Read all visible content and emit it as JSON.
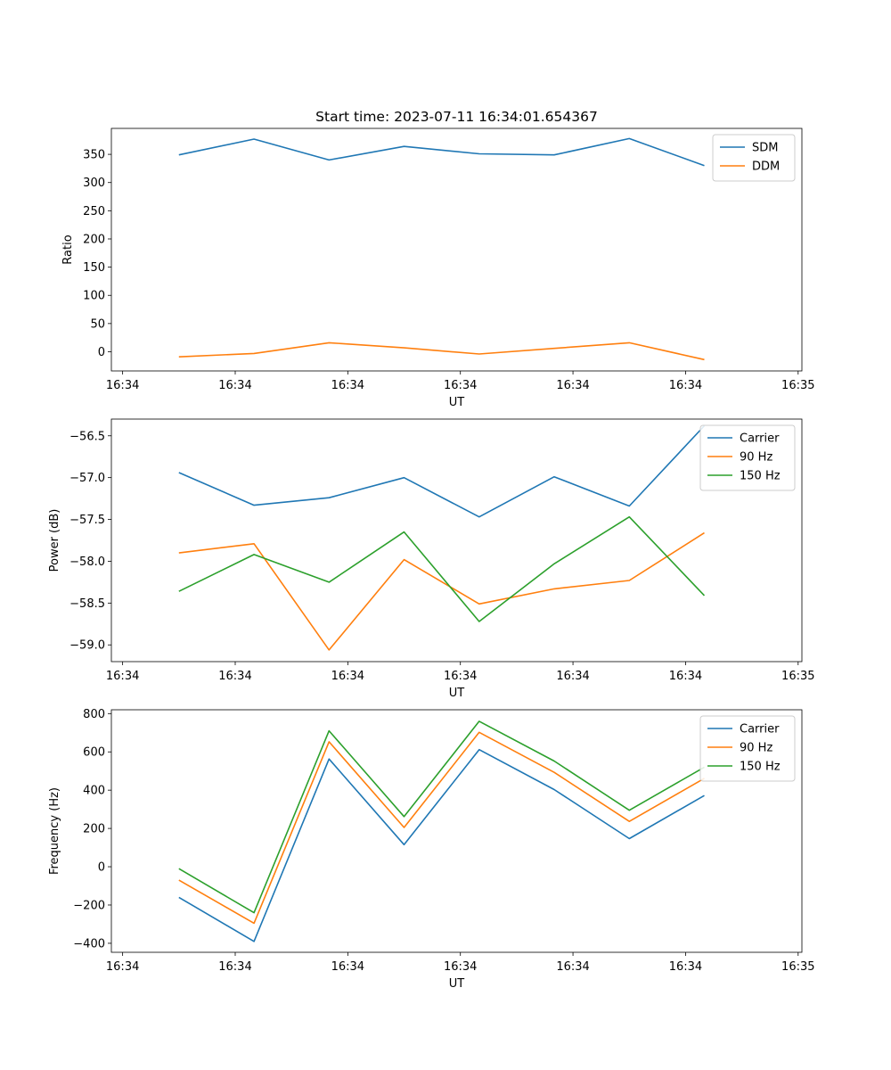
{
  "chart_data": [
    {
      "type": "line",
      "title": "Start time: 2023-07-11 16:34:01.654367",
      "xlabel": "UT",
      "ylabel": "Ratio",
      "x": [
        1,
        2,
        3,
        4,
        5,
        6,
        7,
        8
      ],
      "x_tick_values": [
        0.25,
        1.75,
        3.25,
        4.75,
        6.25,
        7.75,
        9.25
      ],
      "x_tick_labels": [
        "16:34",
        "16:34",
        "16:34",
        "16:34",
        "16:34",
        "16:34",
        "16:35"
      ],
      "xlim": [
        0.1,
        9.3
      ],
      "ylim": [
        -34,
        396
      ],
      "y_ticks": [
        0,
        50,
        100,
        150,
        200,
        250,
        300,
        350
      ],
      "legend_position": "top-right",
      "series": [
        {
          "name": "SDM",
          "color": "#1f77b4",
          "values": [
            349,
            377,
            340,
            364,
            351,
            349,
            378,
            330
          ]
        },
        {
          "name": "DDM",
          "color": "#ff7f0e",
          "values": [
            -9,
            -3,
            16,
            7,
            -4,
            6,
            16,
            -14
          ]
        }
      ]
    },
    {
      "type": "line",
      "title": "",
      "xlabel": "UT",
      "ylabel": "Power (dB)",
      "x": [
        1,
        2,
        3,
        4,
        5,
        6,
        7,
        8
      ],
      "x_tick_values": [
        0.25,
        1.75,
        3.25,
        4.75,
        6.25,
        7.75,
        9.25
      ],
      "x_tick_labels": [
        "16:34",
        "16:34",
        "16:34",
        "16:34",
        "16:34",
        "16:34",
        "16:35"
      ],
      "xlim": [
        0.1,
        9.3
      ],
      "ylim": [
        -59.2,
        -56.3
      ],
      "y_ticks": [
        -59.0,
        -58.5,
        -58.0,
        -57.5,
        -57.0,
        -56.5
      ],
      "y_tick_labels": [
        "−59.0",
        "−58.5",
        "−58.0",
        "−57.5",
        "−57.0",
        "−56.5"
      ],
      "legend_position": "top-right",
      "series": [
        {
          "name": "Carrier",
          "color": "#1f77b4",
          "values": [
            -56.94,
            -57.33,
            -57.24,
            -57.0,
            -57.47,
            -56.99,
            -57.34,
            -56.38
          ]
        },
        {
          "name": "90 Hz",
          "color": "#ff7f0e",
          "values": [
            -57.9,
            -57.79,
            -59.06,
            -57.98,
            -58.51,
            -58.33,
            -58.23,
            -57.66
          ]
        },
        {
          "name": "150 Hz",
          "color": "#2ca02c",
          "values": [
            -58.36,
            -57.92,
            -58.25,
            -57.65,
            -58.72,
            -58.03,
            -57.47,
            -58.41
          ]
        }
      ]
    },
    {
      "type": "line",
      "title": "",
      "xlabel": "UT",
      "ylabel": "Frequency (Hz)",
      "x": [
        1,
        2,
        3,
        4,
        5,
        6,
        7,
        8
      ],
      "x_tick_values": [
        0.25,
        1.75,
        3.25,
        4.75,
        6.25,
        7.75,
        9.25
      ],
      "x_tick_labels": [
        "16:34",
        "16:34",
        "16:34",
        "16:34",
        "16:34",
        "16:34",
        "16:35"
      ],
      "xlim": [
        0.1,
        9.3
      ],
      "ylim": [
        -447,
        820
      ],
      "y_ticks": [
        -400,
        -200,
        0,
        200,
        400,
        600,
        800
      ],
      "y_tick_labels": [
        "−400",
        "−200",
        "0",
        "200",
        "400",
        "600",
        "800"
      ],
      "legend_position": "top-right",
      "series": [
        {
          "name": "Carrier",
          "color": "#1f77b4",
          "values": [
            -160,
            -390,
            563,
            115,
            612,
            403,
            147,
            372
          ]
        },
        {
          "name": "90 Hz",
          "color": "#ff7f0e",
          "values": [
            -70,
            -295,
            653,
            205,
            702,
            493,
            237,
            462
          ]
        },
        {
          "name": "150 Hz",
          "color": "#2ca02c",
          "values": [
            -10,
            -240,
            710,
            262,
            760,
            552,
            295,
            520
          ]
        }
      ]
    }
  ]
}
